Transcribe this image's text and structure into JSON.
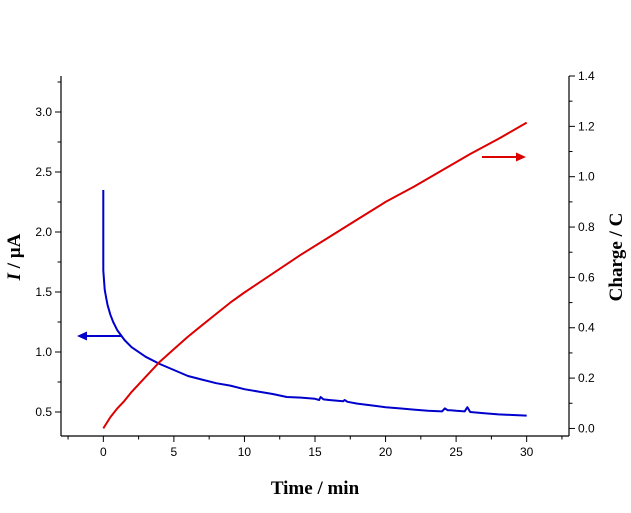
{
  "chart_data": {
    "type": "line",
    "xlabel": "Time / min",
    "ylabel_left_italic": "I",
    "ylabel_left_rest": " / μA",
    "ylabel_right": "Charge / C",
    "xlim": [
      -3,
      33
    ],
    "ylim_left": [
      0.3,
      3.3
    ],
    "ylim_right": [
      -0.03,
      1.4
    ],
    "x_ticks": [
      0,
      5,
      10,
      15,
      20,
      25,
      30
    ],
    "x_tick_labels": [
      "0",
      "5",
      "10",
      "15",
      "20",
      "25",
      "30"
    ],
    "y_left_ticks": [
      0.5,
      1.0,
      1.5,
      2.0,
      2.5,
      3.0
    ],
    "y_left_tick_labels": [
      "0.5",
      "1.0",
      "1.5",
      "2.0",
      "2.5",
      "3.0"
    ],
    "y_right_ticks": [
      0.0,
      0.2,
      0.4,
      0.6,
      0.8,
      1.0,
      1.2,
      1.4
    ],
    "y_right_tick_labels": [
      "0.0",
      "0.2",
      "0.4",
      "0.6",
      "0.8",
      "1.0",
      "1.2",
      "1.4"
    ],
    "grid": false,
    "series": [
      {
        "axis": "left",
        "color": "#0000cc",
        "x": [
          0.0,
          0.0,
          0.05,
          0.1,
          0.2,
          0.3,
          0.5,
          0.7,
          1.0,
          1.5,
          2.0,
          3.0,
          4.0,
          5.0,
          6.0,
          7.0,
          8.0,
          9.0,
          10.0,
          11.0,
          12.0,
          13.0,
          14.0,
          15.0,
          15.3,
          15.4,
          15.6,
          16.0,
          17.0,
          17.1,
          17.3,
          18.0,
          19.0,
          20.0,
          21.0,
          22.0,
          23.0,
          24.0,
          24.2,
          24.4,
          24.6,
          25.0,
          25.6,
          25.8,
          26.0,
          27.0,
          28.0,
          29.0,
          30.0
        ],
        "values": [
          2.35,
          1.68,
          1.6,
          1.52,
          1.45,
          1.39,
          1.31,
          1.25,
          1.18,
          1.1,
          1.04,
          0.96,
          0.9,
          0.85,
          0.8,
          0.77,
          0.74,
          0.72,
          0.69,
          0.67,
          0.65,
          0.625,
          0.62,
          0.61,
          0.6,
          0.625,
          0.605,
          0.6,
          0.59,
          0.6,
          0.585,
          0.57,
          0.555,
          0.54,
          0.53,
          0.52,
          0.51,
          0.505,
          0.53,
          0.515,
          0.515,
          0.51,
          0.505,
          0.54,
          0.5,
          0.49,
          0.48,
          0.475,
          0.47
        ]
      },
      {
        "axis": "right",
        "color": "#dd0000",
        "x": [
          0,
          0.5,
          1,
          1.5,
          2,
          2.5,
          3,
          3.5,
          4,
          5,
          6,
          7,
          8,
          9,
          10,
          12,
          14,
          16,
          18,
          20,
          22,
          24,
          26,
          28,
          30
        ],
        "values": [
          0.0,
          0.045,
          0.08,
          0.11,
          0.145,
          0.175,
          0.205,
          0.235,
          0.265,
          0.315,
          0.365,
          0.41,
          0.455,
          0.5,
          0.54,
          0.615,
          0.69,
          0.76,
          0.83,
          0.9,
          0.96,
          1.025,
          1.09,
          1.15,
          1.215
        ]
      }
    ],
    "arrows": [
      {
        "direction": "left",
        "color": "#0000cc",
        "points_to": "left axis"
      },
      {
        "direction": "right",
        "color": "#dd0000",
        "points_to": "right axis"
      }
    ]
  }
}
